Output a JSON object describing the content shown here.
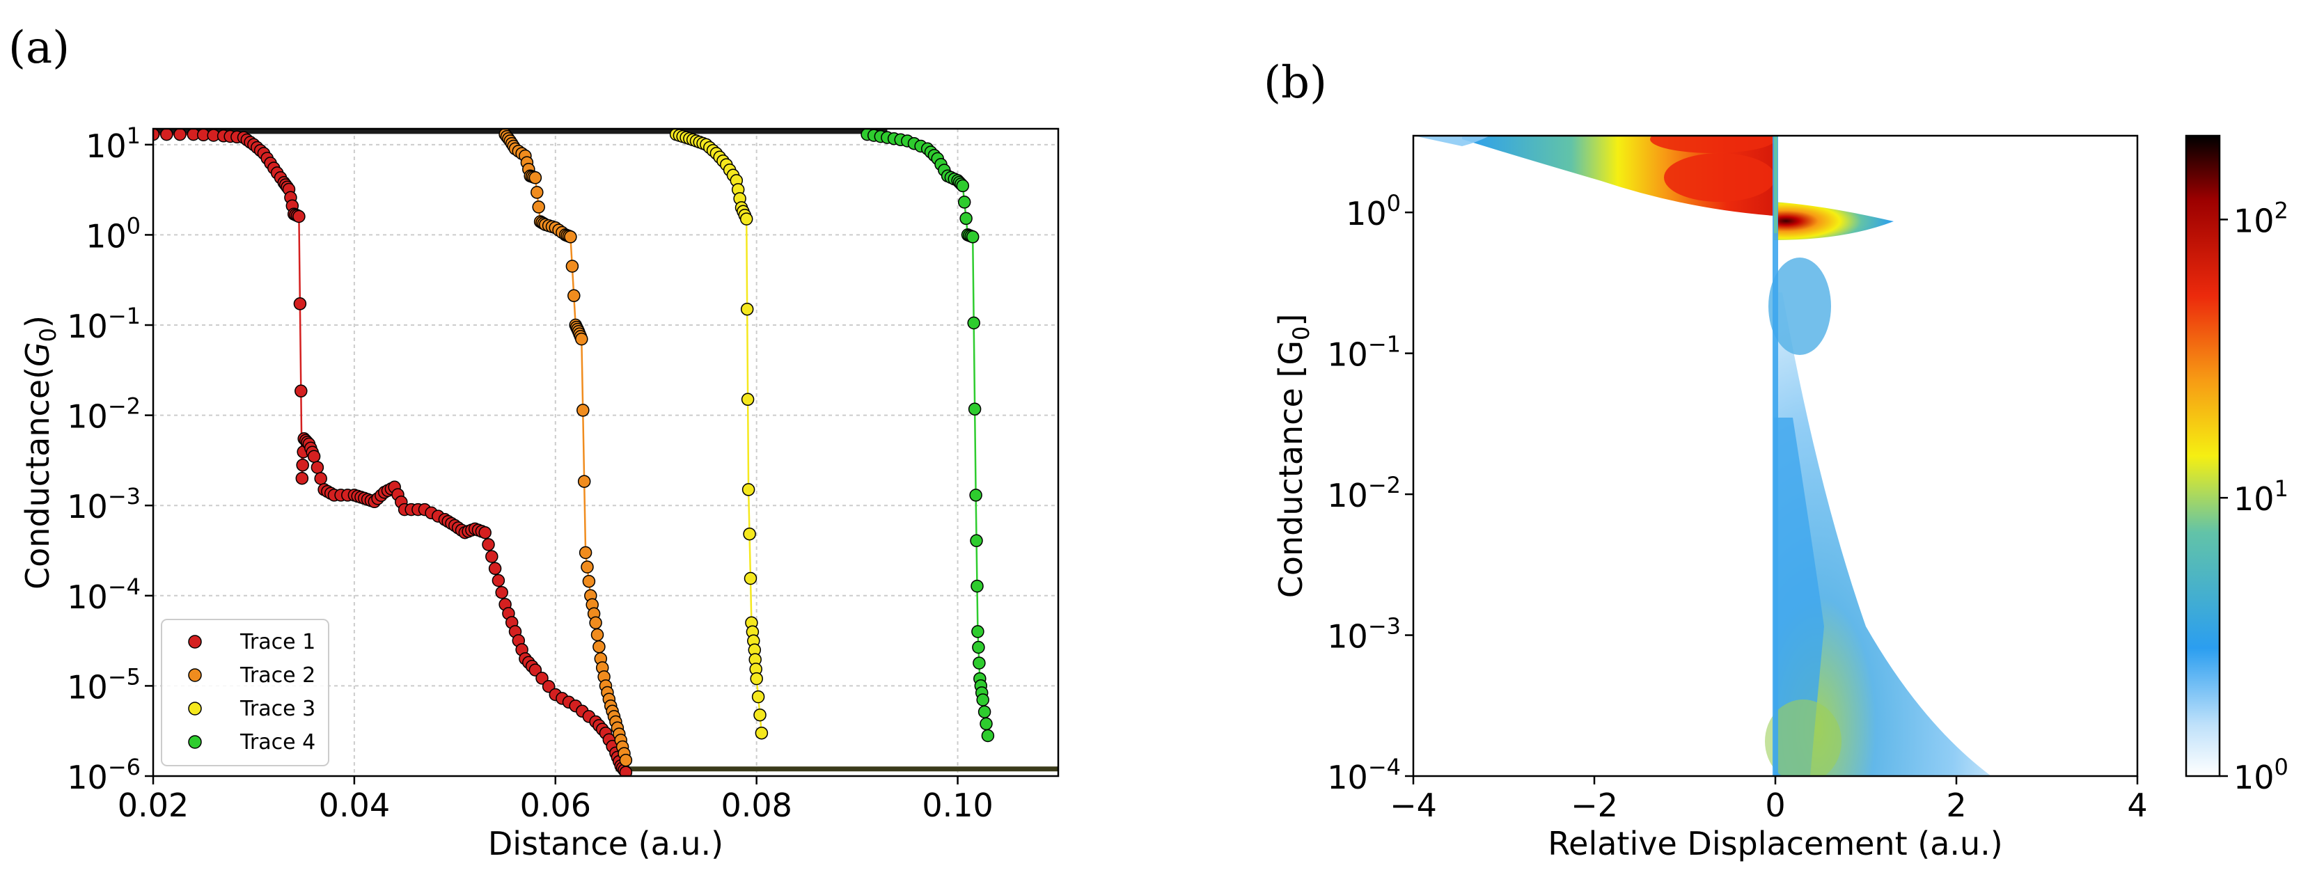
{
  "chart_data": [
    {
      "panel_label": "(a)",
      "type": "scatter",
      "xlabel": "Distance (a.u.)",
      "ylabel": "Conductance(G0)",
      "xlim": [
        0.02,
        0.11
      ],
      "ylim": [
        1e-06,
        15
      ],
      "yscale": "log",
      "grid": true,
      "legend": "bottom-left",
      "xticks": [
        0.02,
        0.04,
        0.06,
        0.08,
        0.1
      ],
      "xtick_labels": [
        "0.02",
        "0.04",
        "0.06",
        "0.08",
        "0.10"
      ],
      "yticks": [
        10.0,
        1.0,
        0.1,
        0.01,
        0.001,
        0.0001,
        1e-05,
        1e-06
      ],
      "ytick_labels": [
        {
          "base": "10",
          "exp": "1"
        },
        {
          "base": "10",
          "exp": "0"
        },
        {
          "base": "10",
          "exp": "−1"
        },
        {
          "base": "10",
          "exp": "−2"
        },
        {
          "base": "10",
          "exp": "−3"
        },
        {
          "base": "10",
          "exp": "−4"
        },
        {
          "base": "10",
          "exp": "−5"
        },
        {
          "base": "10",
          "exp": "−6"
        }
      ],
      "series": [
        {
          "name": "Trace 1",
          "color": "#d42020",
          "points": [
            [
              0.02,
              13
            ],
            [
              0.024,
              13
            ],
            [
              0.027,
              12.5
            ],
            [
              0.029,
              12
            ],
            [
              0.03,
              10
            ],
            [
              0.031,
              8
            ],
            [
              0.032,
              5.5
            ],
            [
              0.033,
              3.8
            ],
            [
              0.0335,
              3.2
            ],
            [
              0.034,
              1.7
            ],
            [
              0.0345,
              1.6
            ],
            [
              0.0348,
              0.002
            ],
            [
              0.035,
              0.0055
            ],
            [
              0.0355,
              0.0048
            ],
            [
              0.036,
              0.0035
            ],
            [
              0.037,
              0.0015
            ],
            [
              0.038,
              0.0013
            ],
            [
              0.04,
              0.0013
            ],
            [
              0.041,
              0.0012
            ],
            [
              0.042,
              0.0011
            ],
            [
              0.043,
              0.0014
            ],
            [
              0.044,
              0.0016
            ],
            [
              0.045,
              0.0009
            ],
            [
              0.047,
              0.0009
            ],
            [
              0.049,
              0.0007
            ],
            [
              0.05,
              0.0006
            ],
            [
              0.051,
              0.0005
            ],
            [
              0.052,
              0.00055
            ],
            [
              0.053,
              0.0005
            ],
            [
              0.054,
              0.0002
            ],
            [
              0.055,
              8e-05
            ],
            [
              0.056,
              4e-05
            ],
            [
              0.057,
              2e-05
            ],
            [
              0.058,
              1.5e-05
            ],
            [
              0.06,
              8e-06
            ],
            [
              0.062,
              6e-06
            ],
            [
              0.064,
              4e-06
            ],
            [
              0.065,
              3e-06
            ],
            [
              0.066,
              1.8e-06
            ],
            [
              0.0665,
              1.3e-06
            ],
            [
              0.067,
              1.1e-06
            ]
          ]
        },
        {
          "name": "Trace 2",
          "color": "#f08c1e",
          "points": [
            [
              0.055,
              13
            ],
            [
              0.0555,
              11
            ],
            [
              0.056,
              9
            ],
            [
              0.057,
              7.5
            ],
            [
              0.0575,
              4.5
            ],
            [
              0.058,
              4.3
            ],
            [
              0.0585,
              1.4
            ],
            [
              0.059,
              1.3
            ],
            [
              0.06,
              1.2
            ],
            [
              0.061,
              1.0
            ],
            [
              0.0615,
              0.95
            ],
            [
              0.062,
              0.1
            ],
            [
              0.0623,
              0.085
            ],
            [
              0.0626,
              0.07
            ],
            [
              0.063,
              0.0003
            ],
            [
              0.0635,
              0.0001
            ],
            [
              0.064,
              5e-05
            ],
            [
              0.0645,
              2e-05
            ],
            [
              0.065,
              1e-05
            ],
            [
              0.0655,
              6e-06
            ],
            [
              0.066,
              4e-06
            ],
            [
              0.0665,
              2.5e-06
            ],
            [
              0.067,
              1.5e-06
            ]
          ]
        },
        {
          "name": "Trace 3",
          "color": "#f5e81e",
          "points": [
            [
              0.072,
              13
            ],
            [
              0.073,
              12
            ],
            [
              0.074,
              11
            ],
            [
              0.075,
              10
            ],
            [
              0.076,
              8
            ],
            [
              0.077,
              6
            ],
            [
              0.078,
              4
            ],
            [
              0.0785,
              2
            ],
            [
              0.079,
              1.5
            ],
            [
              0.0792,
              0.0015
            ],
            [
              0.0795,
              5e-05
            ],
            [
              0.0798,
              2.5e-05
            ],
            [
              0.08,
              1.2e-05
            ],
            [
              0.0805,
              3e-06
            ]
          ]
        },
        {
          "name": "Trace 4",
          "color": "#2ecc2e",
          "points": [
            [
              0.091,
              13
            ],
            [
              0.093,
              12
            ],
            [
              0.095,
              11
            ],
            [
              0.097,
              9
            ],
            [
              0.098,
              7
            ],
            [
              0.099,
              4.5
            ],
            [
              0.1,
              4
            ],
            [
              0.1005,
              3.5
            ],
            [
              0.101,
              1.0
            ],
            [
              0.1015,
              0.95
            ],
            [
              0.1018,
              0.0013
            ],
            [
              0.102,
              4e-05
            ],
            [
              0.1022,
              1.2e-05
            ],
            [
              0.1025,
              7e-06
            ],
            [
              0.103,
              2.8e-06
            ]
          ]
        }
      ],
      "floor_value": 1.2e-06,
      "ceiling_value": 14
    },
    {
      "panel_label": "(b)",
      "type": "heatmap",
      "xlabel": "Relative Displacement (a.u.)",
      "ylabel": "Conductance [G0]",
      "xlim": [
        -4,
        4
      ],
      "ylim": [
        0.0001,
        3.5
      ],
      "yscale": "log",
      "xticks": [
        -4,
        -2,
        0,
        2,
        4
      ],
      "xtick_labels": [
        "−4",
        "−2",
        "0",
        "2",
        "4"
      ],
      "yticks": [
        1.0,
        0.1,
        0.01,
        0.001,
        0.0001
      ],
      "ytick_labels": [
        {
          "base": "10",
          "exp": "0"
        },
        {
          "base": "10",
          "exp": "−1"
        },
        {
          "base": "10",
          "exp": "−2"
        },
        {
          "base": "10",
          "exp": "−3"
        },
        {
          "base": "10",
          "exp": "−4"
        }
      ],
      "colorbar": {
        "scale": "log",
        "range": [
          1,
          200
        ],
        "ticks": [
          1,
          10,
          100
        ],
        "tick_labels": [
          {
            "base": "10",
            "exp": "0"
          },
          {
            "base": "10",
            "exp": "1"
          },
          {
            "base": "10",
            "exp": "2"
          }
        ],
        "colors": [
          "#ffffff",
          "#bfe1fa",
          "#2b9ef0",
          "#62c3a8",
          "#f5ef12",
          "#f79a14",
          "#ec2a0c",
          "#9c0000",
          "#000000"
        ]
      },
      "features": [
        {
          "label": "high-conductance plateau band",
          "x_range": [
            -3.6,
            0
          ],
          "y_range": [
            1,
            3.5
          ]
        },
        {
          "label": "single-atom contact peak",
          "x_range": [
            0,
            1.3
          ],
          "y_range": [
            0.7,
            1.1
          ]
        },
        {
          "label": "tunneling tail",
          "x_range": [
            0,
            2.3
          ],
          "y_range": [
            0.0001,
            0.3
          ]
        }
      ]
    }
  ]
}
